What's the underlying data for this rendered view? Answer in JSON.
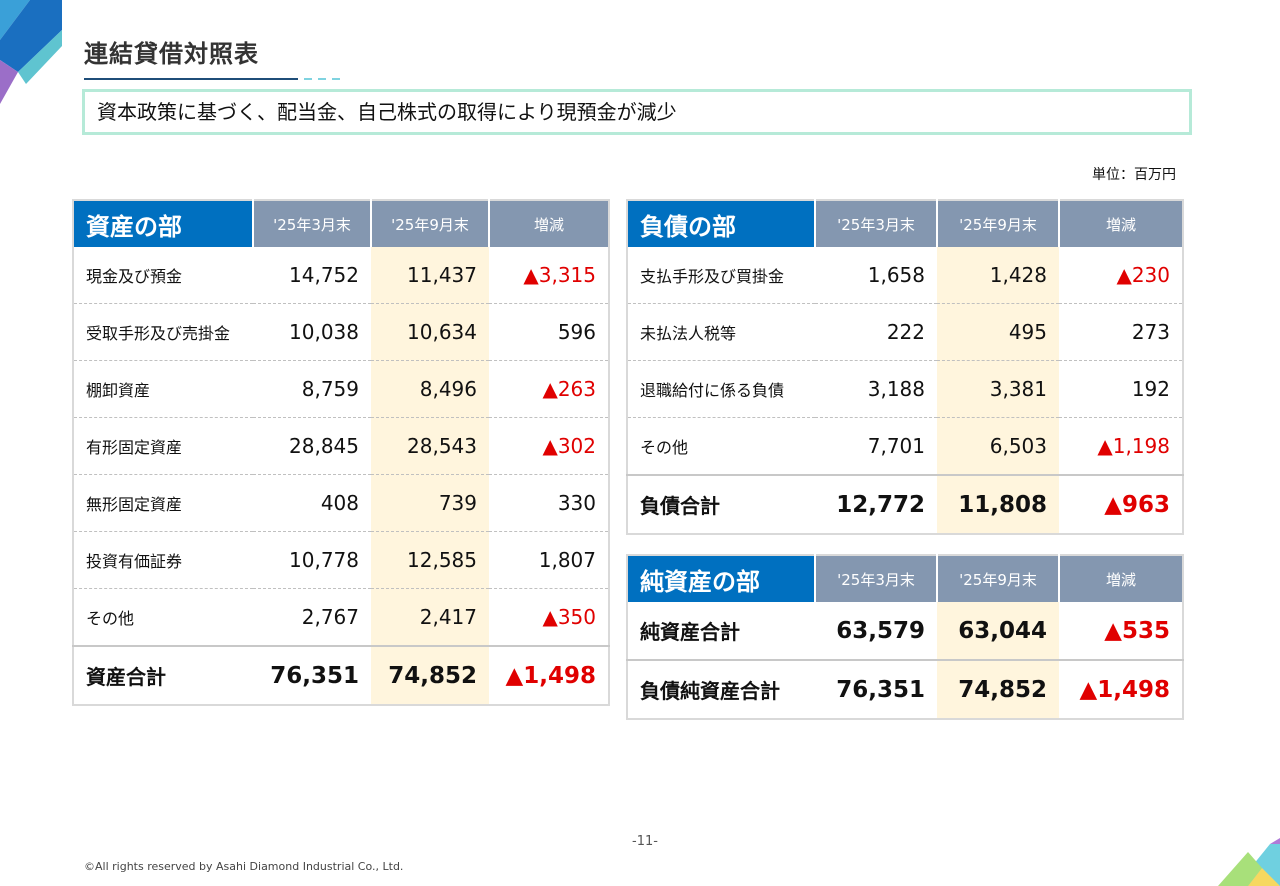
{
  "page": {
    "title": "連結貸借対照表",
    "summary": "資本政策に基づく、配当金、自己株式の取得により現預金が減少",
    "unit": "単位：百万円",
    "page_number": "-11-",
    "copyright": "©All rights reserved by Asahi Diamond Industrial Co., Ltd."
  },
  "colors": {
    "header_blue": "#0070c0",
    "header_gray": "#8497b0",
    "highlight": "#fff5dd",
    "negative": "#e00000"
  },
  "assets": {
    "header": [
      "資産の部",
      "'25年3月末",
      "'25年9月末",
      "増減"
    ],
    "rows": [
      {
        "label": "現金及び預金",
        "mar": "14,752",
        "sep": "11,437",
        "diff": "▲3,315"
      },
      {
        "label": "受取手形及び売掛金",
        "mar": "10,038",
        "sep": "10,634",
        "diff": "596"
      },
      {
        "label": "棚卸資産",
        "mar": "8,759",
        "sep": "8,496",
        "diff": "▲263"
      },
      {
        "label": "有形固定資産",
        "mar": "28,845",
        "sep": "28,543",
        "diff": "▲302"
      },
      {
        "label": "無形固定資産",
        "mar": "408",
        "sep": "739",
        "diff": "330"
      },
      {
        "label": "投資有価証券",
        "mar": "10,778",
        "sep": "12,585",
        "diff": "1,807"
      },
      {
        "label": "その他",
        "mar": "2,767",
        "sep": "2,417",
        "diff": "▲350"
      }
    ],
    "total": {
      "label": "資産合計",
      "mar": "76,351",
      "sep": "74,852",
      "diff": "▲1,498"
    }
  },
  "liabilities": {
    "header": [
      "負債の部",
      "'25年3月末",
      "'25年9月末",
      "増減"
    ],
    "rows": [
      {
        "label": "支払手形及び買掛金",
        "mar": "1,658",
        "sep": "1,428",
        "diff": "▲230"
      },
      {
        "label": "未払法人税等",
        "mar": "222",
        "sep": "495",
        "diff": "273"
      },
      {
        "label": "退職給付に係る負債",
        "mar": "3,188",
        "sep": "3,381",
        "diff": "192"
      },
      {
        "label": "その他",
        "mar": "7,701",
        "sep": "6,503",
        "diff": "▲1,198"
      }
    ],
    "total": {
      "label": "負債合計",
      "mar": "12,772",
      "sep": "11,808",
      "diff": "▲963"
    }
  },
  "net_assets": {
    "header": [
      "純資産の部",
      "'25年3月末",
      "'25年9月末",
      "増減"
    ],
    "rows": [
      {
        "label": "純資産合計",
        "mar": "63,579",
        "sep": "63,044",
        "diff": "▲535"
      },
      {
        "label": "負債純資産合計",
        "mar": "76,351",
        "sep": "74,852",
        "diff": "▲1,498"
      }
    ]
  }
}
